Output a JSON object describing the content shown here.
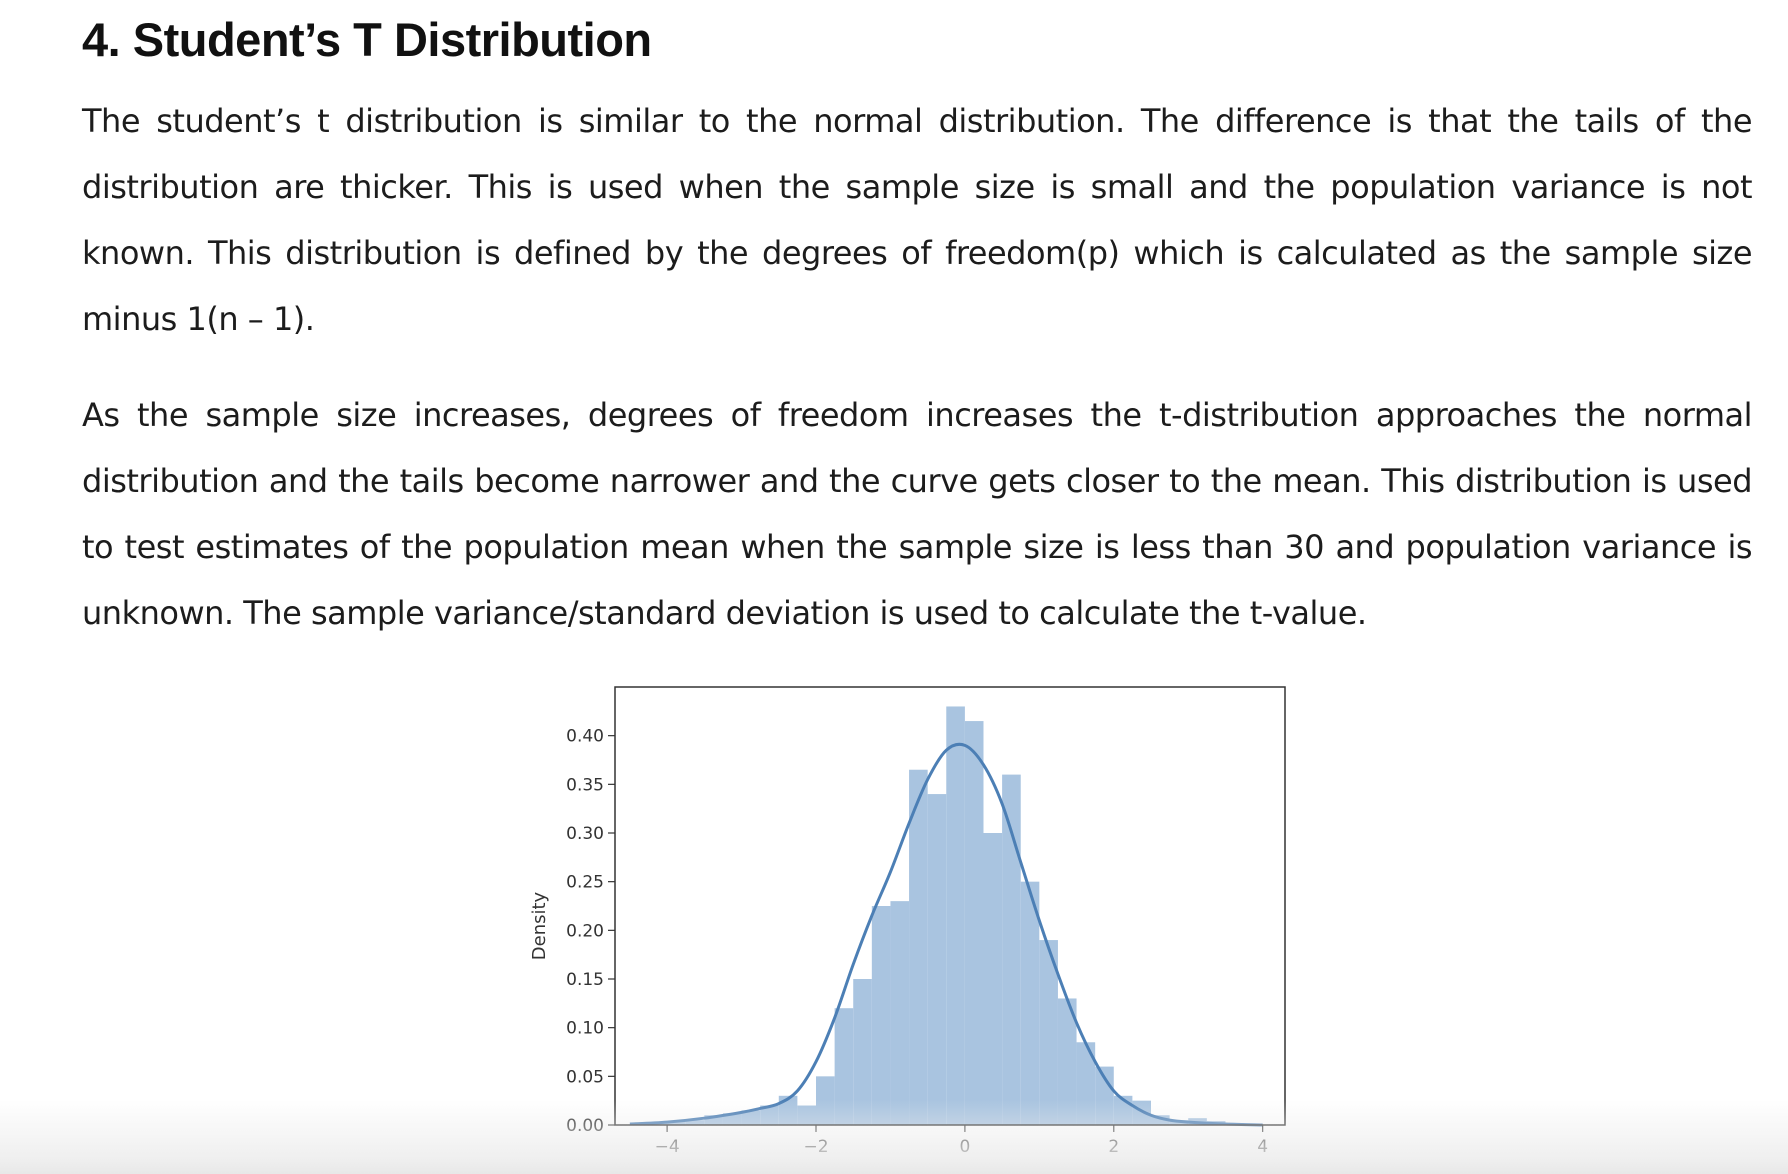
{
  "article": {
    "heading": "4. Student’s T Distribution",
    "paragraph1": "The student’s t distribution is similar to the normal distribution. The difference is that the tails of the distribution are thicker. This is used when the sample size is small and the population variance is not known. This distribution is defined by the degrees of freedom(p) which is calculated as the sample size minus 1(n – 1).",
    "paragraph2": "As the sample size increases, degrees of freedom increases the t-distribution approaches the normal distribution and the tails become narrower and the curve gets closer to the mean. This distribution is used to test estimates of the population mean when the sample size is less than 30 and population variance is unknown. The sample variance/standard deviation is used to calculate the t-value."
  },
  "chart_data": {
    "type": "bar",
    "title": "",
    "xlabel": "",
    "ylabel": "Density",
    "xlim": [
      -4.7,
      4.3
    ],
    "ylim": [
      0,
      0.45
    ],
    "grid": false,
    "colors": {
      "bars": "#a9c4e0",
      "kde": "#4c7fb5",
      "axes": "#333333"
    },
    "x_ticks": [
      {
        "value": -4,
        "label": "−4"
      },
      {
        "value": -2,
        "label": "−2"
      },
      {
        "value": 0,
        "label": "0"
      },
      {
        "value": 2,
        "label": "2"
      },
      {
        "value": 4,
        "label": "4"
      }
    ],
    "y_ticks": [
      {
        "value": 0.0,
        "label": "0.00"
      },
      {
        "value": 0.05,
        "label": "0.05"
      },
      {
        "value": 0.1,
        "label": "0.10"
      },
      {
        "value": 0.15,
        "label": "0.15"
      },
      {
        "value": 0.2,
        "label": "0.20"
      },
      {
        "value": 0.25,
        "label": "0.25"
      },
      {
        "value": 0.3,
        "label": "0.30"
      },
      {
        "value": 0.35,
        "label": "0.35"
      },
      {
        "value": 0.4,
        "label": "0.40"
      }
    ],
    "histogram": {
      "bin_edges": [
        -4.5,
        -4.25,
        -4.0,
        -3.75,
        -3.5,
        -3.25,
        -3.0,
        -2.75,
        -2.5,
        -2.25,
        -2.0,
        -1.75,
        -1.5,
        -1.25,
        -1.0,
        -0.75,
        -0.5,
        -0.25,
        0.0,
        0.25,
        0.5,
        0.75,
        1.0,
        1.25,
        1.5,
        1.75,
        2.0,
        2.25,
        2.5,
        2.75,
        3.0,
        3.25,
        3.5,
        3.75,
        4.0
      ],
      "density": [
        0.002,
        0.003,
        0.004,
        0.005,
        0.01,
        0.012,
        0.015,
        0.02,
        0.03,
        0.02,
        0.05,
        0.12,
        0.15,
        0.225,
        0.23,
        0.365,
        0.34,
        0.43,
        0.415,
        0.3,
        0.36,
        0.25,
        0.19,
        0.13,
        0.085,
        0.06,
        0.03,
        0.025,
        0.01,
        0.005,
        0.007,
        0.004,
        0.002,
        0.001
      ]
    },
    "kde": {
      "x": [
        -4.5,
        -4.0,
        -3.5,
        -3.0,
        -2.75,
        -2.5,
        -2.25,
        -2.0,
        -1.75,
        -1.5,
        -1.25,
        -1.0,
        -0.75,
        -0.5,
        -0.25,
        0.0,
        0.25,
        0.5,
        0.75,
        1.0,
        1.25,
        1.5,
        1.75,
        2.0,
        2.25,
        2.5,
        2.75,
        3.0,
        3.5,
        4.0
      ],
      "y": [
        0.001,
        0.003,
        0.007,
        0.013,
        0.017,
        0.022,
        0.035,
        0.065,
        0.11,
        0.165,
        0.215,
        0.26,
        0.31,
        0.355,
        0.385,
        0.39,
        0.37,
        0.33,
        0.27,
        0.21,
        0.155,
        0.105,
        0.065,
        0.035,
        0.02,
        0.01,
        0.005,
        0.003,
        0.001,
        0.0
      ]
    }
  }
}
